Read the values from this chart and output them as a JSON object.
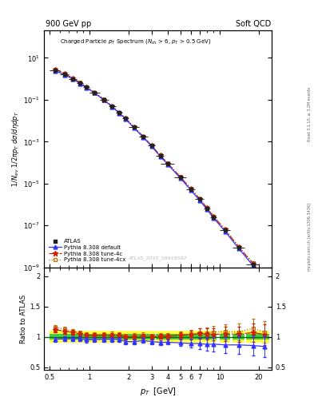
{
  "title_left": "900 GeV pp",
  "title_right": "Soft QCD",
  "watermark": "ATLAS_2010_S8918562",
  "right_label": "mcplots.cern.ch [arXiv:1306.3436]",
  "right_label2": "Rivet 3.1.10, ≥ 3.2M events",
  "atlas_data_x": [
    0.55,
    0.65,
    0.75,
    0.85,
    0.95,
    1.1,
    1.3,
    1.5,
    1.7,
    1.9,
    2.2,
    2.6,
    3.0,
    3.5,
    4.0,
    5.0,
    6.0,
    7.0,
    8.0,
    9.0,
    11.0,
    14.0,
    18.0,
    22.0
  ],
  "atlas_data_y": [
    2.5,
    1.6,
    1.0,
    0.62,
    0.4,
    0.22,
    0.1,
    0.048,
    0.024,
    0.013,
    0.005,
    0.0017,
    0.00065,
    0.00022,
    9e-05,
    2e-05,
    5.5e-06,
    1.8e-06,
    6.5e-07,
    2.5e-07,
    6e-08,
    9e-09,
    1.4e-09,
    2.5e-10
  ],
  "atlas_data_ex": [
    0.05,
    0.05,
    0.05,
    0.05,
    0.05,
    0.1,
    0.1,
    0.1,
    0.1,
    0.1,
    0.2,
    0.2,
    0.2,
    0.25,
    0.5,
    0.5,
    0.5,
    0.5,
    0.5,
    0.5,
    1.0,
    1.5,
    2.0,
    2.0
  ],
  "atlas_data_ey": [
    0.1,
    0.08,
    0.06,
    0.05,
    0.04,
    0.025,
    0.012,
    0.006,
    0.003,
    0.0015,
    0.0006,
    0.0002,
    8e-05,
    3e-05,
    1.2e-05,
    3e-06,
    8e-07,
    2.5e-07,
    1e-07,
    4e-08,
    1e-08,
    1.8e-09,
    3e-10,
    6e-11
  ],
  "pythia_default_y": [
    2.4,
    1.55,
    0.97,
    0.6,
    0.38,
    0.21,
    0.096,
    0.046,
    0.023,
    0.012,
    0.0046,
    0.0016,
    0.0006,
    0.0002,
    8.2e-05,
    1.8e-05,
    4.9e-06,
    1.6e-06,
    5.7e-07,
    2.2e-07,
    5.2e-08,
    7.8e-09,
    1.2e-09,
    2.1e-10
  ],
  "pythia_4c_y": [
    2.8,
    1.75,
    1.07,
    0.65,
    0.41,
    0.225,
    0.102,
    0.049,
    0.0245,
    0.013,
    0.005,
    0.00172,
    0.00065,
    0.000222,
    9.1e-05,
    2.05e-05,
    5.7e-06,
    1.9e-06,
    6.8e-07,
    2.6e-07,
    6.3e-08,
    9.4e-09,
    1.5e-09,
    2.6e-10
  ],
  "pythia_4cx_y": [
    2.9,
    1.8,
    1.09,
    0.66,
    0.415,
    0.228,
    0.104,
    0.05,
    0.0248,
    0.0132,
    0.0051,
    0.00175,
    0.00066,
    0.000226,
    9.25e-05,
    2.08e-05,
    5.8e-06,
    1.9e-06,
    6.9e-07,
    2.7e-07,
    6.5e-08,
    9.7e-09,
    1.6e-09,
    2.7e-10
  ],
  "ratio_default": [
    0.96,
    0.969,
    0.97,
    0.968,
    0.95,
    0.955,
    0.96,
    0.958,
    0.958,
    0.923,
    0.92,
    0.941,
    0.923,
    0.909,
    0.911,
    0.9,
    0.891,
    0.889,
    0.877,
    0.88,
    0.867,
    0.867,
    0.857,
    0.84
  ],
  "ratio_4c": [
    1.12,
    1.094,
    1.07,
    1.048,
    1.025,
    1.023,
    1.02,
    1.021,
    1.021,
    1.0,
    1.0,
    1.012,
    1.0,
    1.009,
    1.011,
    1.025,
    1.036,
    1.056,
    1.046,
    1.04,
    1.05,
    1.044,
    1.071,
    1.04
  ],
  "ratio_4cx": [
    1.16,
    1.125,
    1.09,
    1.065,
    1.0375,
    1.036,
    1.04,
    1.042,
    1.033,
    1.015,
    1.02,
    1.029,
    1.015,
    1.027,
    1.028,
    1.04,
    1.055,
    1.056,
    1.062,
    1.08,
    1.083,
    1.078,
    1.143,
    1.08
  ],
  "ratio_default_ey": [
    0.04,
    0.04,
    0.04,
    0.04,
    0.04,
    0.04,
    0.04,
    0.04,
    0.04,
    0.04,
    0.04,
    0.04,
    0.04,
    0.04,
    0.04,
    0.05,
    0.07,
    0.09,
    0.1,
    0.12,
    0.13,
    0.15,
    0.17,
    0.18
  ],
  "ratio_4c_ey": [
    0.04,
    0.04,
    0.04,
    0.04,
    0.04,
    0.04,
    0.04,
    0.04,
    0.04,
    0.04,
    0.04,
    0.04,
    0.04,
    0.04,
    0.04,
    0.05,
    0.06,
    0.08,
    0.09,
    0.1,
    0.12,
    0.13,
    0.15,
    0.17
  ],
  "ratio_4cx_ey": [
    0.04,
    0.04,
    0.04,
    0.04,
    0.04,
    0.04,
    0.04,
    0.04,
    0.04,
    0.04,
    0.04,
    0.04,
    0.04,
    0.04,
    0.04,
    0.05,
    0.06,
    0.08,
    0.09,
    0.1,
    0.12,
    0.14,
    0.16,
    0.18
  ],
  "atlas_color": "#222222",
  "default_color": "#3333ff",
  "tune4c_color": "#cc2200",
  "tune4cx_color": "#cc6600",
  "green_band": 0.05,
  "yellow_band": 0.1,
  "xlim": [
    0.45,
    25.0
  ],
  "ylim_main": [
    1e-09,
    200.0
  ],
  "ylim_ratio": [
    0.45,
    2.15
  ]
}
